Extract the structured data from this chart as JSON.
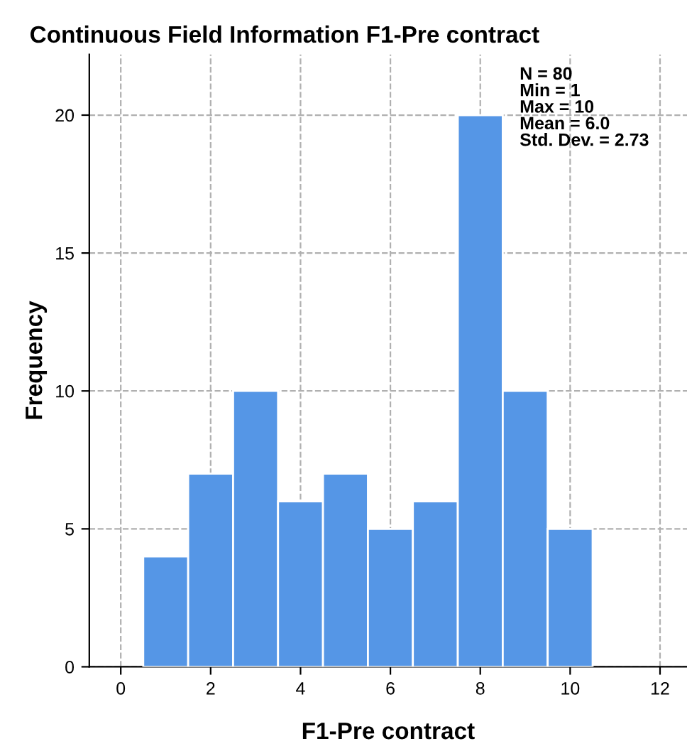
{
  "chart_data": {
    "type": "histogram",
    "title": "Continuous Field Information F1-Pre contract",
    "xlabel": "F1-Pre contract",
    "ylabel": "Frequency",
    "bins": [
      0.5,
      1.5,
      2.5,
      3.5,
      4.5,
      5.5,
      6.5,
      7.5,
      8.5,
      9.5,
      10.5
    ],
    "values": [
      4,
      7,
      10,
      6,
      7,
      5,
      6,
      20,
      10,
      5
    ],
    "color": "#5596e6",
    "xlim": [
      -0.7,
      12.6
    ],
    "xticks": [
      0,
      2,
      4,
      6,
      8,
      10,
      12
    ],
    "ylim": [
      0,
      22.2
    ],
    "yticks": [
      0,
      5,
      10,
      15,
      20
    ],
    "grid": true,
    "line_style": "dashed",
    "annotations": [
      "N = 80\nMin = 1\nMax = 10\nMean = 6.0\nStd. Dev. = 2.73"
    ]
  }
}
